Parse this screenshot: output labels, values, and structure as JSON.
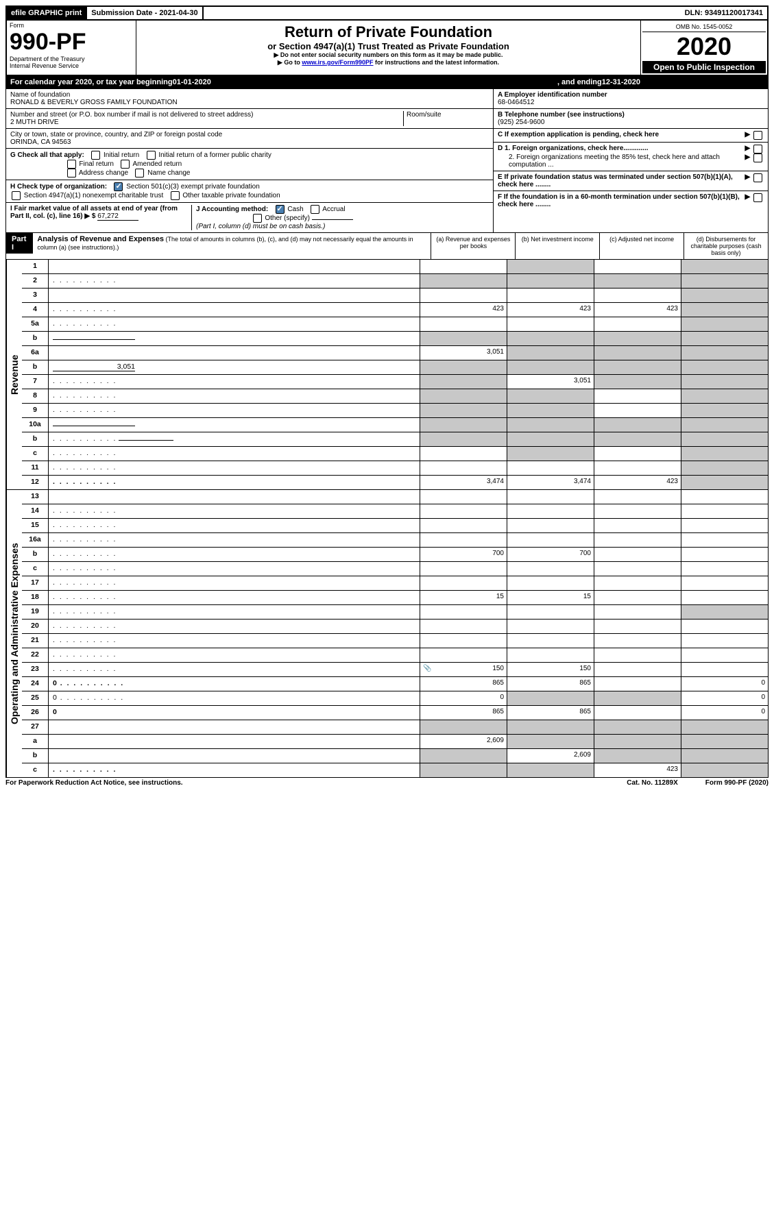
{
  "topbar": {
    "efile": "efile GRAPHIC print",
    "submission": "Submission Date - 2021-04-30",
    "dln": "DLN: 93491120017341"
  },
  "header": {
    "form_word": "Form",
    "form_number": "990-PF",
    "dept": "Department of the Treasury",
    "irs": "Internal Revenue Service",
    "title": "Return of Private Foundation",
    "subtitle": "or Section 4947(a)(1) Trust Treated as Private Foundation",
    "note1": "▶ Do not enter social security numbers on this form as it may be made public.",
    "note2_pre": "▶ Go to ",
    "note2_link": "www.irs.gov/Form990PF",
    "note2_post": " for instructions and the latest information.",
    "omb": "OMB No. 1545-0052",
    "year": "2020",
    "open": "Open to Public Inspection"
  },
  "calyear": {
    "pre": "For calendar year 2020, or tax year beginning ",
    "begin": "01-01-2020",
    "mid": " , and ending ",
    "end": "12-31-2020"
  },
  "entity": {
    "name_label": "Name of foundation",
    "name": "RONALD & BEVERLY GROSS FAMILY FOUNDATION",
    "addr_label": "Number and street (or P.O. box number if mail is not delivered to street address)",
    "addr": "2 MUTH DRIVE",
    "room_label": "Room/suite",
    "city_label": "City or town, state or province, country, and ZIP or foreign postal code",
    "city": "ORINDA, CA  94563",
    "a_label": "A Employer identification number",
    "a_val": "68-0464512",
    "b_label": "B Telephone number (see instructions)",
    "b_val": "(925) 254-9600",
    "c_label": "C If exemption application is pending, check here",
    "d1": "D 1. Foreign organizations, check here.............",
    "d2": "2. Foreign organizations meeting the 85% test, check here and attach computation ...",
    "e": "E  If private foundation status was terminated under section 507(b)(1)(A), check here ........",
    "f": "F  If the foundation is in a 60-month termination under section 507(b)(1)(B), check here ........"
  },
  "checks": {
    "g_label": "G Check all that apply:",
    "initial": "Initial return",
    "initial_former": "Initial return of a former public charity",
    "final": "Final return",
    "amended": "Amended return",
    "address": "Address change",
    "name_change": "Name change",
    "h_label": "H Check type of organization:",
    "h1": "Section 501(c)(3) exempt private foundation",
    "h2": "Section 4947(a)(1) nonexempt charitable trust",
    "h3": "Other taxable private foundation",
    "i_label": "I Fair market value of all assets at end of year (from Part II, col. (c), line 16) ▶ $",
    "i_val": "67,272",
    "j_label": "J Accounting method:",
    "j_cash": "Cash",
    "j_accrual": "Accrual",
    "j_other": "Other (specify)",
    "j_note": "(Part I, column (d) must be on cash basis.)"
  },
  "part1": {
    "label": "Part I",
    "title": "Analysis of Revenue and Expenses",
    "title_note": " (The total of amounts in columns (b), (c), and (d) may not necessarily equal the amounts in column (a) (see instructions).)",
    "col_a": "(a)   Revenue and expenses per books",
    "col_b": "(b)  Net investment income",
    "col_c": "(c)  Adjusted net income",
    "col_d": "(d)  Disbursements for charitable purposes (cash basis only)"
  },
  "side": {
    "revenue": "Revenue",
    "expenses": "Operating and Administrative Expenses"
  },
  "rows": [
    {
      "n": "1",
      "d": "",
      "a": "",
      "b": "",
      "c": "",
      "gb": true,
      "gc": false,
      "gd": true
    },
    {
      "n": "2",
      "d": "",
      "dots": true,
      "a": "",
      "b": "",
      "c": "",
      "ga": true,
      "gb": true,
      "gc": true,
      "gd": true
    },
    {
      "n": "3",
      "d": "",
      "a": "",
      "b": "",
      "c": "",
      "gd": true
    },
    {
      "n": "4",
      "d": "",
      "dots": true,
      "a": "423",
      "b": "423",
      "c": "423",
      "gd": true
    },
    {
      "n": "5a",
      "d": "",
      "dots": true,
      "a": "",
      "b": "",
      "c": "",
      "gd": true
    },
    {
      "n": "b",
      "d": "",
      "inline": true,
      "a": "",
      "b": "",
      "c": "",
      "ga": true,
      "gb": true,
      "gc": true,
      "gd": true
    },
    {
      "n": "6a",
      "d": "",
      "a": "3,051",
      "b": "",
      "c": "",
      "gb": true,
      "gc": true,
      "gd": true
    },
    {
      "n": "b",
      "d": "",
      "inline": true,
      "inlinev": "3,051",
      "a": "",
      "b": "",
      "c": "",
      "ga": true,
      "gb": true,
      "gc": true,
      "gd": true
    },
    {
      "n": "7",
      "d": "",
      "dots": true,
      "a": "",
      "b": "3,051",
      "c": "",
      "ga": true,
      "gc": true,
      "gd": true
    },
    {
      "n": "8",
      "d": "",
      "dots": true,
      "a": "",
      "b": "",
      "c": "",
      "ga": true,
      "gb": true,
      "gd": true
    },
    {
      "n": "9",
      "d": "",
      "dots": true,
      "a": "",
      "b": "",
      "c": "",
      "ga": true,
      "gb": true,
      "gd": true
    },
    {
      "n": "10a",
      "d": "",
      "inline": true,
      "a": "",
      "b": "",
      "c": "",
      "ga": true,
      "gb": true,
      "gc": true,
      "gd": true
    },
    {
      "n": "b",
      "d": "",
      "dots": true,
      "inline": true,
      "a": "",
      "b": "",
      "c": "",
      "ga": true,
      "gb": true,
      "gc": true,
      "gd": true
    },
    {
      "n": "c",
      "d": "",
      "dots": true,
      "a": "",
      "b": "",
      "c": "",
      "gb": true,
      "gd": true
    },
    {
      "n": "11",
      "d": "",
      "dots": true,
      "a": "",
      "b": "",
      "c": "",
      "gd": true
    },
    {
      "n": "12",
      "d": "",
      "dots": true,
      "bold": true,
      "a": "3,474",
      "b": "3,474",
      "c": "423",
      "gd": true
    }
  ],
  "exp_rows": [
    {
      "n": "13",
      "d": "",
      "a": "",
      "b": "",
      "c": ""
    },
    {
      "n": "14",
      "d": "",
      "dots": true,
      "a": "",
      "b": "",
      "c": ""
    },
    {
      "n": "15",
      "d": "",
      "dots": true,
      "a": "",
      "b": "",
      "c": ""
    },
    {
      "n": "16a",
      "d": "",
      "dots": true,
      "a": "",
      "b": "",
      "c": ""
    },
    {
      "n": "b",
      "d": "",
      "dots": true,
      "a": "700",
      "b": "700",
      "c": ""
    },
    {
      "n": "c",
      "d": "",
      "dots": true,
      "a": "",
      "b": "",
      "c": ""
    },
    {
      "n": "17",
      "d": "",
      "dots": true,
      "a": "",
      "b": "",
      "c": ""
    },
    {
      "n": "18",
      "d": "",
      "dots": true,
      "a": "15",
      "b": "15",
      "c": ""
    },
    {
      "n": "19",
      "d": "",
      "dots": true,
      "a": "",
      "b": "",
      "c": "",
      "gd": true
    },
    {
      "n": "20",
      "d": "",
      "dots": true,
      "a": "",
      "b": "",
      "c": ""
    },
    {
      "n": "21",
      "d": "",
      "dots": true,
      "a": "",
      "b": "",
      "c": ""
    },
    {
      "n": "22",
      "d": "",
      "dots": true,
      "a": "",
      "b": "",
      "c": ""
    },
    {
      "n": "23",
      "d": "",
      "dots": true,
      "icon": true,
      "a": "150",
      "b": "150",
      "c": ""
    },
    {
      "n": "24",
      "d": "0",
      "dots": true,
      "bold": true,
      "a": "865",
      "b": "865",
      "c": ""
    },
    {
      "n": "25",
      "d": "0",
      "dots": true,
      "a": "0",
      "b": "",
      "c": "",
      "gb": true,
      "gc": true
    },
    {
      "n": "26",
      "d": "0",
      "bold": true,
      "a": "865",
      "b": "865",
      "c": ""
    },
    {
      "n": "27",
      "d": "",
      "a": "",
      "b": "",
      "c": "",
      "ga": true,
      "gb": true,
      "gc": true,
      "gd": true
    },
    {
      "n": "a",
      "d": "",
      "bold": true,
      "a": "2,609",
      "b": "",
      "c": "",
      "gb": true,
      "gc": true,
      "gd": true
    },
    {
      "n": "b",
      "d": "",
      "bold": true,
      "a": "",
      "b": "2,609",
      "c": "",
      "ga": true,
      "gc": true,
      "gd": true
    },
    {
      "n": "c",
      "d": "",
      "dots": true,
      "bold": true,
      "a": "",
      "b": "",
      "c": "423",
      "ga": true,
      "gb": true,
      "gd": true
    }
  ],
  "footer": {
    "left": "For Paperwork Reduction Act Notice, see instructions.",
    "mid": "Cat. No. 11289X",
    "right": "Form 990-PF (2020)"
  }
}
